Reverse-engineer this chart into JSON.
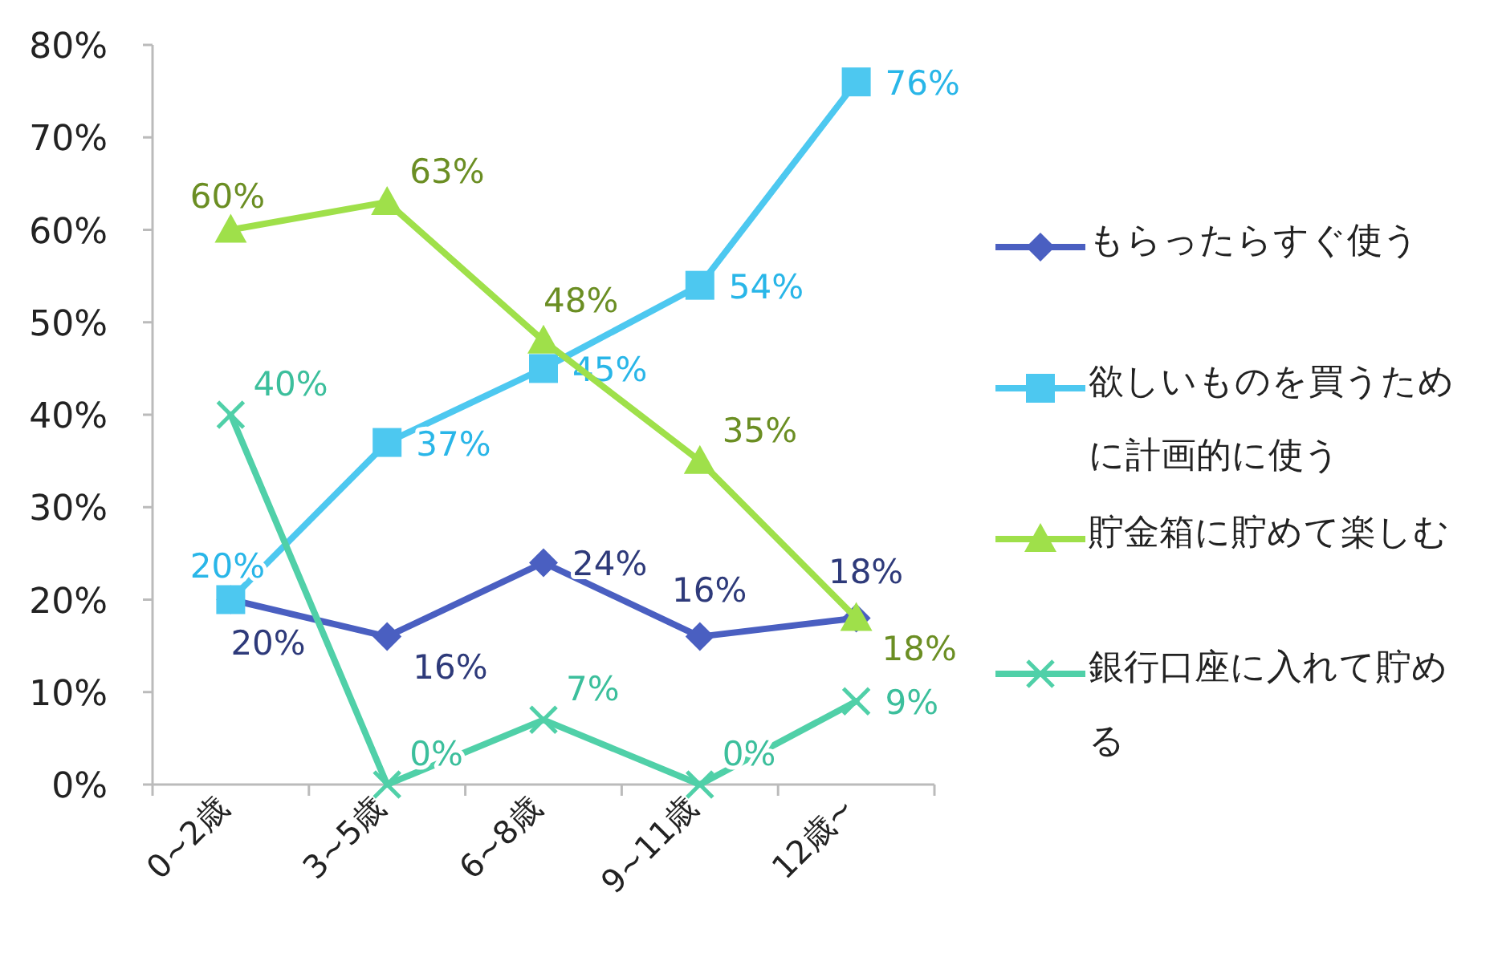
{
  "chart_data": {
    "type": "line",
    "categories": [
      "0~2歳",
      "3~5歳",
      "6~8歳",
      "9~11歳",
      "12歳~"
    ],
    "series": [
      {
        "name": "もらったらすぐ使う",
        "color": "#4a5fc1",
        "marker": "diamond",
        "values": [
          20,
          16,
          24,
          16,
          18
        ],
        "value_labels": [
          "20%",
          "16%",
          "24%",
          "16%",
          "18%"
        ]
      },
      {
        "name": "欲しいものを買うために計画的に使う",
        "color": "#4dc8f0",
        "marker": "square",
        "values": [
          20,
          37,
          45,
          54,
          76
        ],
        "value_labels": [
          "20%",
          "37%",
          "45%",
          "54%",
          "76%"
        ]
      },
      {
        "name": "貯金箱に貯めて楽しむ",
        "color": "#9fe04a",
        "marker": "triangle",
        "values": [
          60,
          63,
          48,
          35,
          18
        ],
        "value_labels": [
          "60%",
          "63%",
          "48%",
          "35%",
          "18%"
        ]
      },
      {
        "name": "銀行口座に入れて貯める",
        "color": "#50d0a8",
        "marker": "cross",
        "values": [
          40,
          0,
          7,
          0,
          9
        ],
        "value_labels": [
          "40%",
          "0%",
          "7%",
          "0%",
          "9%"
        ]
      }
    ],
    "ylim": [
      0,
      80
    ],
    "yticks": [
      {
        "value": 0,
        "label": "0%"
      },
      {
        "value": 10,
        "label": "10%"
      },
      {
        "value": 20,
        "label": "20%"
      },
      {
        "value": 30,
        "label": "30%"
      },
      {
        "value": 40,
        "label": "40%"
      },
      {
        "value": 50,
        "label": "50%"
      },
      {
        "value": 60,
        "label": "60%"
      },
      {
        "value": 70,
        "label": "70%"
      },
      {
        "value": 80,
        "label": "80%"
      }
    ],
    "grid": false,
    "legend": "right"
  }
}
